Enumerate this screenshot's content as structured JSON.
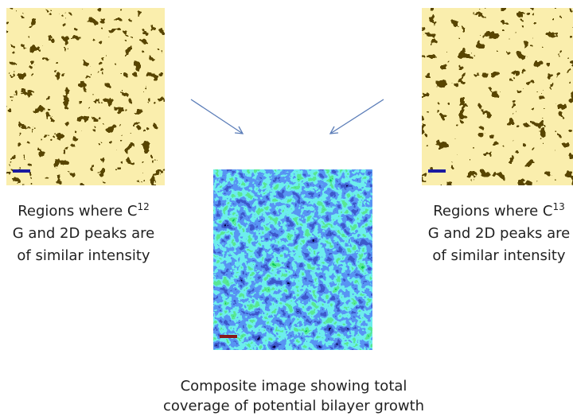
{
  "left_caption": {
    "line1": "Regions where C",
    "superscript": "12",
    "line2": "G and 2D peaks are",
    "line3": "of similar intensity"
  },
  "right_caption": {
    "line1": "Regions where C",
    "superscript": "13",
    "line2": "G and 2D peaks are",
    "line3": "of similar intensity"
  },
  "bottom_caption": {
    "line1": "Composite image showing total",
    "line2": "coverage of potential bilayer growth"
  }
}
